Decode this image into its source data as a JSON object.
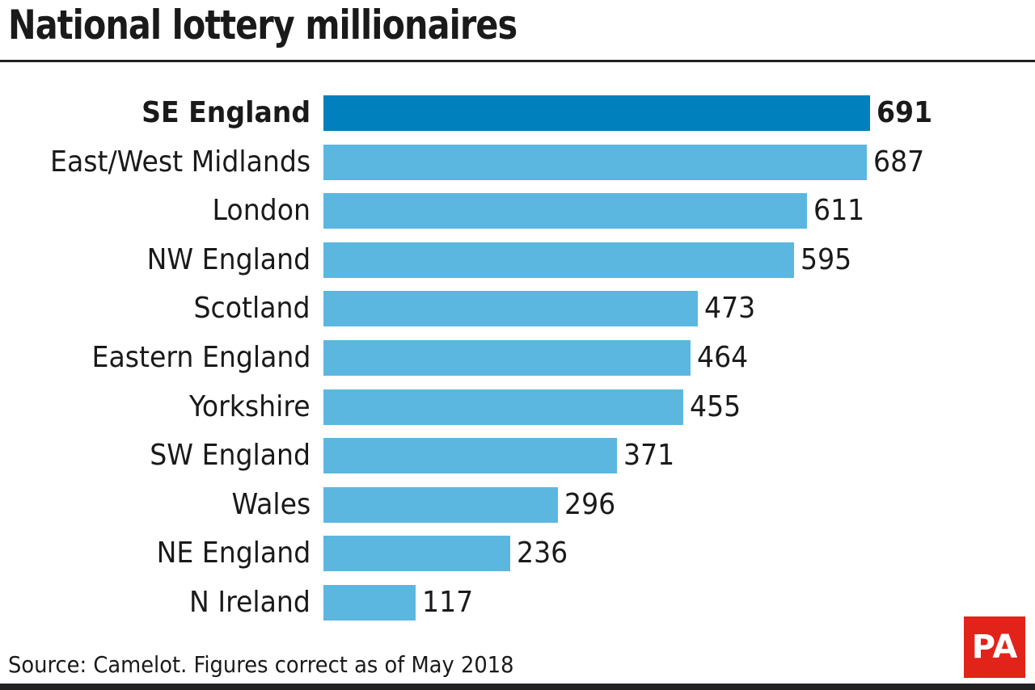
{
  "header": {
    "title": "National lottery millionaires"
  },
  "footer": {
    "source": "Source: Camelot. Figures correct as of May 2018",
    "logo": "PA"
  },
  "colors": {
    "highlight": "#0080bd",
    "bar": "#5bb7df",
    "logo": "#e2231a"
  },
  "chart_data": {
    "type": "bar",
    "orientation": "horizontal",
    "title": "National lottery millionaires",
    "xlabel": "",
    "ylabel": "",
    "categories": [
      "SE England",
      "East/West Midlands",
      "London",
      "NW England",
      "Scotland",
      "Eastern England",
      "Yorkshire",
      "SW England",
      "Wales",
      "NE England",
      "N Ireland"
    ],
    "values": [
      691,
      687,
      611,
      595,
      473,
      464,
      455,
      371,
      296,
      236,
      117
    ],
    "highlighted": "SE England",
    "data_labels": true,
    "grid": false,
    "source": "Source: Camelot. Figures correct as of May 2018"
  }
}
